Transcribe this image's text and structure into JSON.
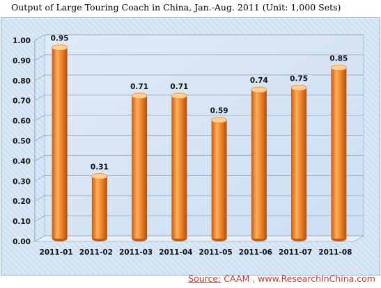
{
  "chart_data": {
    "type": "bar",
    "title": "Output of Large Touring Coach in China, Jan.-Aug. 2011   (Unit: 1,000 Sets)",
    "categories": [
      "2011-01",
      "2011-02",
      "2011-03",
      "2011-04",
      "2011-05",
      "2011-06",
      "2011-07",
      "2011-08"
    ],
    "values": [
      0.95,
      0.31,
      0.71,
      0.71,
      0.59,
      0.74,
      0.75,
      0.85
    ],
    "value_labels": [
      "0.95",
      "0.31",
      "0.71",
      "0.71",
      "0.59",
      "0.74",
      "0.75",
      "0.85"
    ],
    "yticks": [
      "0.00",
      "0.10",
      "0.20",
      "0.30",
      "0.40",
      "0.50",
      "0.60",
      "0.70",
      "0.80",
      "0.90",
      "1.00"
    ],
    "ylim": [
      0,
      1.0
    ],
    "grid": true,
    "xlabel": "",
    "ylabel": "",
    "bar_color": "#f0892a",
    "bar_dark": "#c85a0e",
    "bar_light": "#ffd09a"
  },
  "source": {
    "label": "Source:",
    "text": " CAAM , www.ResearchInChina.com",
    "color": "#c0392b"
  }
}
